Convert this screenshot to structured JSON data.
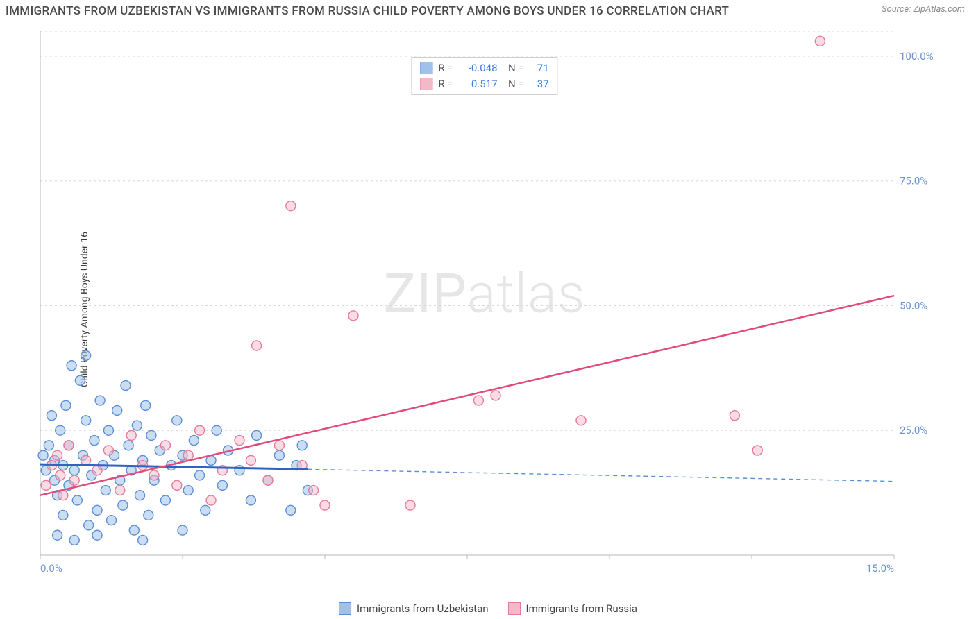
{
  "title": "IMMIGRANTS FROM UZBEKISTAN VS IMMIGRANTS FROM RUSSIA CHILD POVERTY AMONG BOYS UNDER 16 CORRELATION CHART",
  "source": "Source: ZipAtlas.com",
  "y_axis_label": "Child Poverty Among Boys Under 16",
  "watermark_a": "ZIP",
  "watermark_b": "atlas",
  "chart": {
    "type": "scatter",
    "xlim": [
      0,
      15
    ],
    "ylim": [
      0,
      105
    ],
    "x_ticks": [
      {
        "v": 0,
        "l": "0.0%"
      },
      {
        "v": 15,
        "l": "15.0%"
      }
    ],
    "y_ticks": [
      {
        "v": 25,
        "l": "25.0%"
      },
      {
        "v": 50,
        "l": "50.0%"
      },
      {
        "v": 75,
        "l": "75.0%"
      },
      {
        "v": 100,
        "l": "100.0%"
      }
    ],
    "grid_color": "#d8d8d8",
    "background_color": "#ffffff",
    "axis_color": "#b8b8b8",
    "tick_label_color": "#6d95d2",
    "marker_radius": 7,
    "marker_stroke_width": 1.4,
    "series": [
      {
        "name": "Immigrants from Uzbekistan",
        "fill": "#9fc1ea",
        "stroke": "#5a8fd6",
        "fill_opacity": 0.55,
        "R": "-0.048",
        "N": "71",
        "trend": {
          "x1": 0,
          "y1": 18.2,
          "x2": 4.7,
          "y2": 17.2,
          "color": "#2f63c0",
          "width": 3
        },
        "trend_ext": {
          "x1": 4.7,
          "y1": 17.2,
          "x2": 15,
          "y2": 14.8,
          "color": "#5a8fd6",
          "dash": "6,5",
          "width": 1.4
        },
        "points": [
          [
            0.05,
            20
          ],
          [
            0.1,
            17
          ],
          [
            0.15,
            22
          ],
          [
            0.2,
            28
          ],
          [
            0.25,
            15
          ],
          [
            0.25,
            19
          ],
          [
            0.3,
            12
          ],
          [
            0.35,
            25
          ],
          [
            0.4,
            8
          ],
          [
            0.4,
            18
          ],
          [
            0.45,
            30
          ],
          [
            0.5,
            14
          ],
          [
            0.5,
            22
          ],
          [
            0.55,
            38
          ],
          [
            0.6,
            17
          ],
          [
            0.65,
            11
          ],
          [
            0.7,
            35
          ],
          [
            0.75,
            20
          ],
          [
            0.8,
            27
          ],
          [
            0.85,
            6
          ],
          [
            0.9,
            16
          ],
          [
            0.95,
            23
          ],
          [
            1.0,
            9
          ],
          [
            1.05,
            31
          ],
          [
            1.1,
            18
          ],
          [
            1.15,
            13
          ],
          [
            1.2,
            25
          ],
          [
            1.25,
            7
          ],
          [
            1.3,
            20
          ],
          [
            1.35,
            29
          ],
          [
            1.4,
            15
          ],
          [
            1.45,
            10
          ],
          [
            1.5,
            34
          ],
          [
            1.55,
            22
          ],
          [
            1.6,
            17
          ],
          [
            1.65,
            5
          ],
          [
            1.7,
            26
          ],
          [
            1.75,
            12
          ],
          [
            1.8,
            19
          ],
          [
            1.85,
            30
          ],
          [
            1.9,
            8
          ],
          [
            1.95,
            24
          ],
          [
            2.0,
            15
          ],
          [
            2.1,
            21
          ],
          [
            2.2,
            11
          ],
          [
            2.3,
            18
          ],
          [
            2.4,
            27
          ],
          [
            2.5,
            20
          ],
          [
            2.6,
            13
          ],
          [
            2.7,
            23
          ],
          [
            2.8,
            16
          ],
          [
            2.9,
            9
          ],
          [
            3.0,
            19
          ],
          [
            3.1,
            25
          ],
          [
            3.2,
            14
          ],
          [
            3.3,
            21
          ],
          [
            3.5,
            17
          ],
          [
            3.7,
            11
          ],
          [
            3.8,
            24
          ],
          [
            4.0,
            15
          ],
          [
            4.2,
            20
          ],
          [
            4.4,
            9
          ],
          [
            4.5,
            18
          ],
          [
            4.6,
            22
          ],
          [
            4.7,
            13
          ],
          [
            0.3,
            4
          ],
          [
            0.6,
            3
          ],
          [
            1.0,
            4
          ],
          [
            1.8,
            3
          ],
          [
            2.5,
            5
          ],
          [
            0.8,
            40
          ]
        ]
      },
      {
        "name": "Immigrants from Russia",
        "fill": "#f4b9c9",
        "stroke": "#e67a9a",
        "fill_opacity": 0.5,
        "R": "0.517",
        "N": "37",
        "trend": {
          "x1": 0,
          "y1": 12,
          "x2": 15,
          "y2": 52,
          "color": "#e04b7a",
          "width": 2.5
        },
        "points": [
          [
            0.1,
            14
          ],
          [
            0.2,
            18
          ],
          [
            0.3,
            20
          ],
          [
            0.35,
            16
          ],
          [
            0.4,
            12
          ],
          [
            0.5,
            22
          ],
          [
            0.6,
            15
          ],
          [
            0.8,
            19
          ],
          [
            1.0,
            17
          ],
          [
            1.2,
            21
          ],
          [
            1.4,
            13
          ],
          [
            1.6,
            24
          ],
          [
            1.8,
            18
          ],
          [
            2.0,
            16
          ],
          [
            2.2,
            22
          ],
          [
            2.4,
            14
          ],
          [
            2.6,
            20
          ],
          [
            2.8,
            25
          ],
          [
            3.0,
            11
          ],
          [
            3.2,
            17
          ],
          [
            3.5,
            23
          ],
          [
            3.7,
            19
          ],
          [
            3.8,
            42
          ],
          [
            4.0,
            15
          ],
          [
            4.2,
            22
          ],
          [
            4.4,
            70
          ],
          [
            4.6,
            18
          ],
          [
            4.8,
            13
          ],
          [
            5.0,
            10
          ],
          [
            5.5,
            48
          ],
          [
            6.5,
            10
          ],
          [
            7.7,
            31
          ],
          [
            9.5,
            27
          ],
          [
            12.2,
            28
          ],
          [
            12.6,
            21
          ],
          [
            13.7,
            103
          ],
          [
            8.0,
            32
          ]
        ]
      }
    ],
    "bottom_legend": [
      {
        "label": "Immigrants from Uzbekistan",
        "fill": "#9fc1ea",
        "stroke": "#5a8fd6"
      },
      {
        "label": "Immigrants from Russia",
        "fill": "#f4b9c9",
        "stroke": "#e67a9a"
      }
    ]
  }
}
